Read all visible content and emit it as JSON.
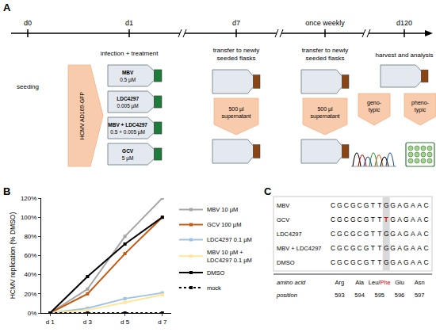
{
  "panel_labels": [
    "A",
    "B",
    "C"
  ],
  "panel_a": {
    "timeline": [
      "d0",
      "d1",
      "d7",
      "once weekly",
      "d120"
    ],
    "seeding": "seeding",
    "infection": {
      "title": "infection + treatment",
      "virus": "HCMV AD169-GFP",
      "flasks": [
        {
          "drug": "MBV",
          "conc": "0.5 µM"
        },
        {
          "drug": "LDC4297",
          "conc": "0.005 µM"
        },
        {
          "drug": "MBV + LDC4297",
          "conc": "0.5 + 0.005 µM"
        },
        {
          "drug": "GCV",
          "conc": "5 µM"
        }
      ]
    },
    "transfer_steps": [
      {
        "title": [
          "transfer to newly",
          "seeded flasks"
        ],
        "volume": [
          "500 µl",
          "supernatant"
        ]
      },
      {
        "title": [
          "transfer to newly",
          "seeded flasks"
        ],
        "volume": [
          "500 µl",
          "supernatant"
        ]
      }
    ],
    "harvest": {
      "title": "harvest and analysis",
      "outputs": [
        [
          "geno-",
          "typic"
        ],
        [
          "pheno-",
          "typic"
        ]
      ]
    }
  },
  "chart_data": {
    "type": "line",
    "y_label": "HCMV replication (% DMSO)",
    "categories": [
      "d 1",
      "d 3",
      "d 5",
      "d 7"
    ],
    "series": [
      {
        "name": "MBV 10 µM",
        "color": "#a6a6a6",
        "values": [
          0,
          25,
          80,
          120
        ]
      },
      {
        "name": "GCV 100 µM",
        "color": "#c55a11",
        "values": [
          0,
          20,
          62,
          100
        ]
      },
      {
        "name": "LDC4297 0.1 µM",
        "color": "#9dc3e6",
        "values": [
          0,
          5,
          15,
          21
        ]
      },
      {
        "name": "MBV 10 µM + LDC4297 0.1 µM",
        "color": "#ffe699",
        "values": [
          0,
          3,
          11,
          19
        ]
      },
      {
        "name": "DMSO",
        "color": "#000000",
        "values": [
          0,
          38,
          72,
          100
        ]
      },
      {
        "name": "mock",
        "color": "#000000",
        "line_style": "dot",
        "values": [
          0,
          0,
          0,
          0
        ]
      }
    ],
    "ylim": [
      0,
      120
    ],
    "yticks": [
      {
        "value": 0,
        "label": "0%"
      },
      {
        "value": 20,
        "label": "20%"
      },
      {
        "value": 40,
        "label": "40%"
      },
      {
        "value": 60,
        "label": "60%"
      },
      {
        "value": 80,
        "label": "80%"
      },
      {
        "value": 100,
        "label": "100%"
      },
      {
        "value": 120,
        "label": "120%"
      }
    ],
    "grid": false,
    "legend": "right",
    "marker": "square"
  },
  "panel_c": {
    "rows": [
      {
        "name": "MBV",
        "sequence": "CGCGCGTTGGAGAAC"
      },
      {
        "name": "GCV",
        "sequence": "CGCGCGTTTGAGAAC",
        "mutation": 9
      },
      {
        "name": "LDC4297",
        "sequence": "CGCGCGTTGGAGAAC"
      },
      {
        "name": "MBV + LDC4297",
        "sequence": "CGCGCGTTGGAGAAC"
      },
      {
        "name": "DMSO",
        "sequence": "CGCGCGTTGGAGAAC"
      }
    ],
    "highlight_column": 9,
    "amino_acid_label": "amino acid",
    "position_label": "position",
    "amino_acids": [
      "Arg",
      "Ala",
      "Leu/Phe",
      "Glu",
      "Asn"
    ],
    "mutant_amino_acid": "Phe",
    "positions": [
      593,
      594,
      595,
      596,
      597
    ]
  }
}
